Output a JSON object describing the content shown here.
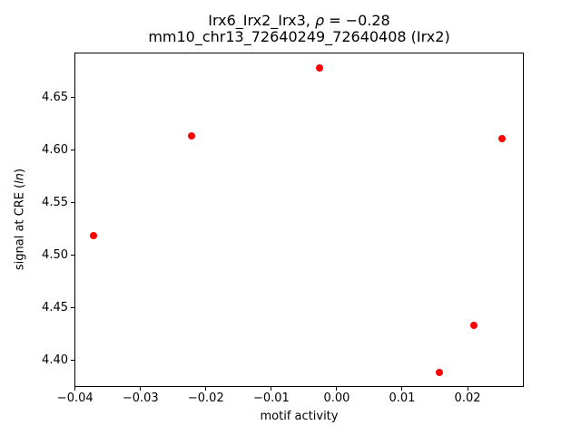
{
  "title": {
    "line1_prefix": "Irx6_Irx2_Irx3, ",
    "line1_rho": "ρ",
    "line1_suffix": " = −0.28",
    "line2": "mm10_chr13_72640249_72640408 (Irx2)"
  },
  "ylabel_parts": {
    "pre": "signal at CRE (",
    "italic": "ln",
    "post": ")"
  },
  "chart_data": {
    "type": "scatter",
    "title": "Irx6_Irx2_Irx3, ρ = −0.28\nmm10_chr13_72640249_72640408 (Irx2)",
    "xlabel": "motif activity",
    "ylabel": "signal at CRE (ln)",
    "legend": "none",
    "grid": false,
    "marker_color": "#ff0000",
    "spine_color": "#000000",
    "xlim": [
      -0.0401,
      0.0286
    ],
    "ylim": [
      4.375,
      4.693
    ],
    "x_ticks": {
      "values": [
        -0.04,
        -0.03,
        -0.02,
        -0.01,
        0.0,
        0.01,
        0.02
      ],
      "labels": [
        "−0.04",
        "−0.03",
        "−0.02",
        "−0.01",
        "0.00",
        "0.01",
        "0.02"
      ]
    },
    "y_ticks": {
      "values": [
        4.4,
        4.45,
        4.5,
        4.55,
        4.6,
        4.65
      ],
      "labels": [
        "4.40",
        "4.45",
        "4.50",
        "4.55",
        "4.60",
        "4.65"
      ]
    },
    "points": [
      {
        "x": -0.0372,
        "y": 4.519
      },
      {
        "x": -0.0222,
        "y": 4.614
      },
      {
        "x": -0.0026,
        "y": 4.678
      },
      {
        "x": 0.0157,
        "y": 4.389
      },
      {
        "x": 0.021,
        "y": 4.434
      },
      {
        "x": 0.0253,
        "y": 4.611
      }
    ]
  }
}
